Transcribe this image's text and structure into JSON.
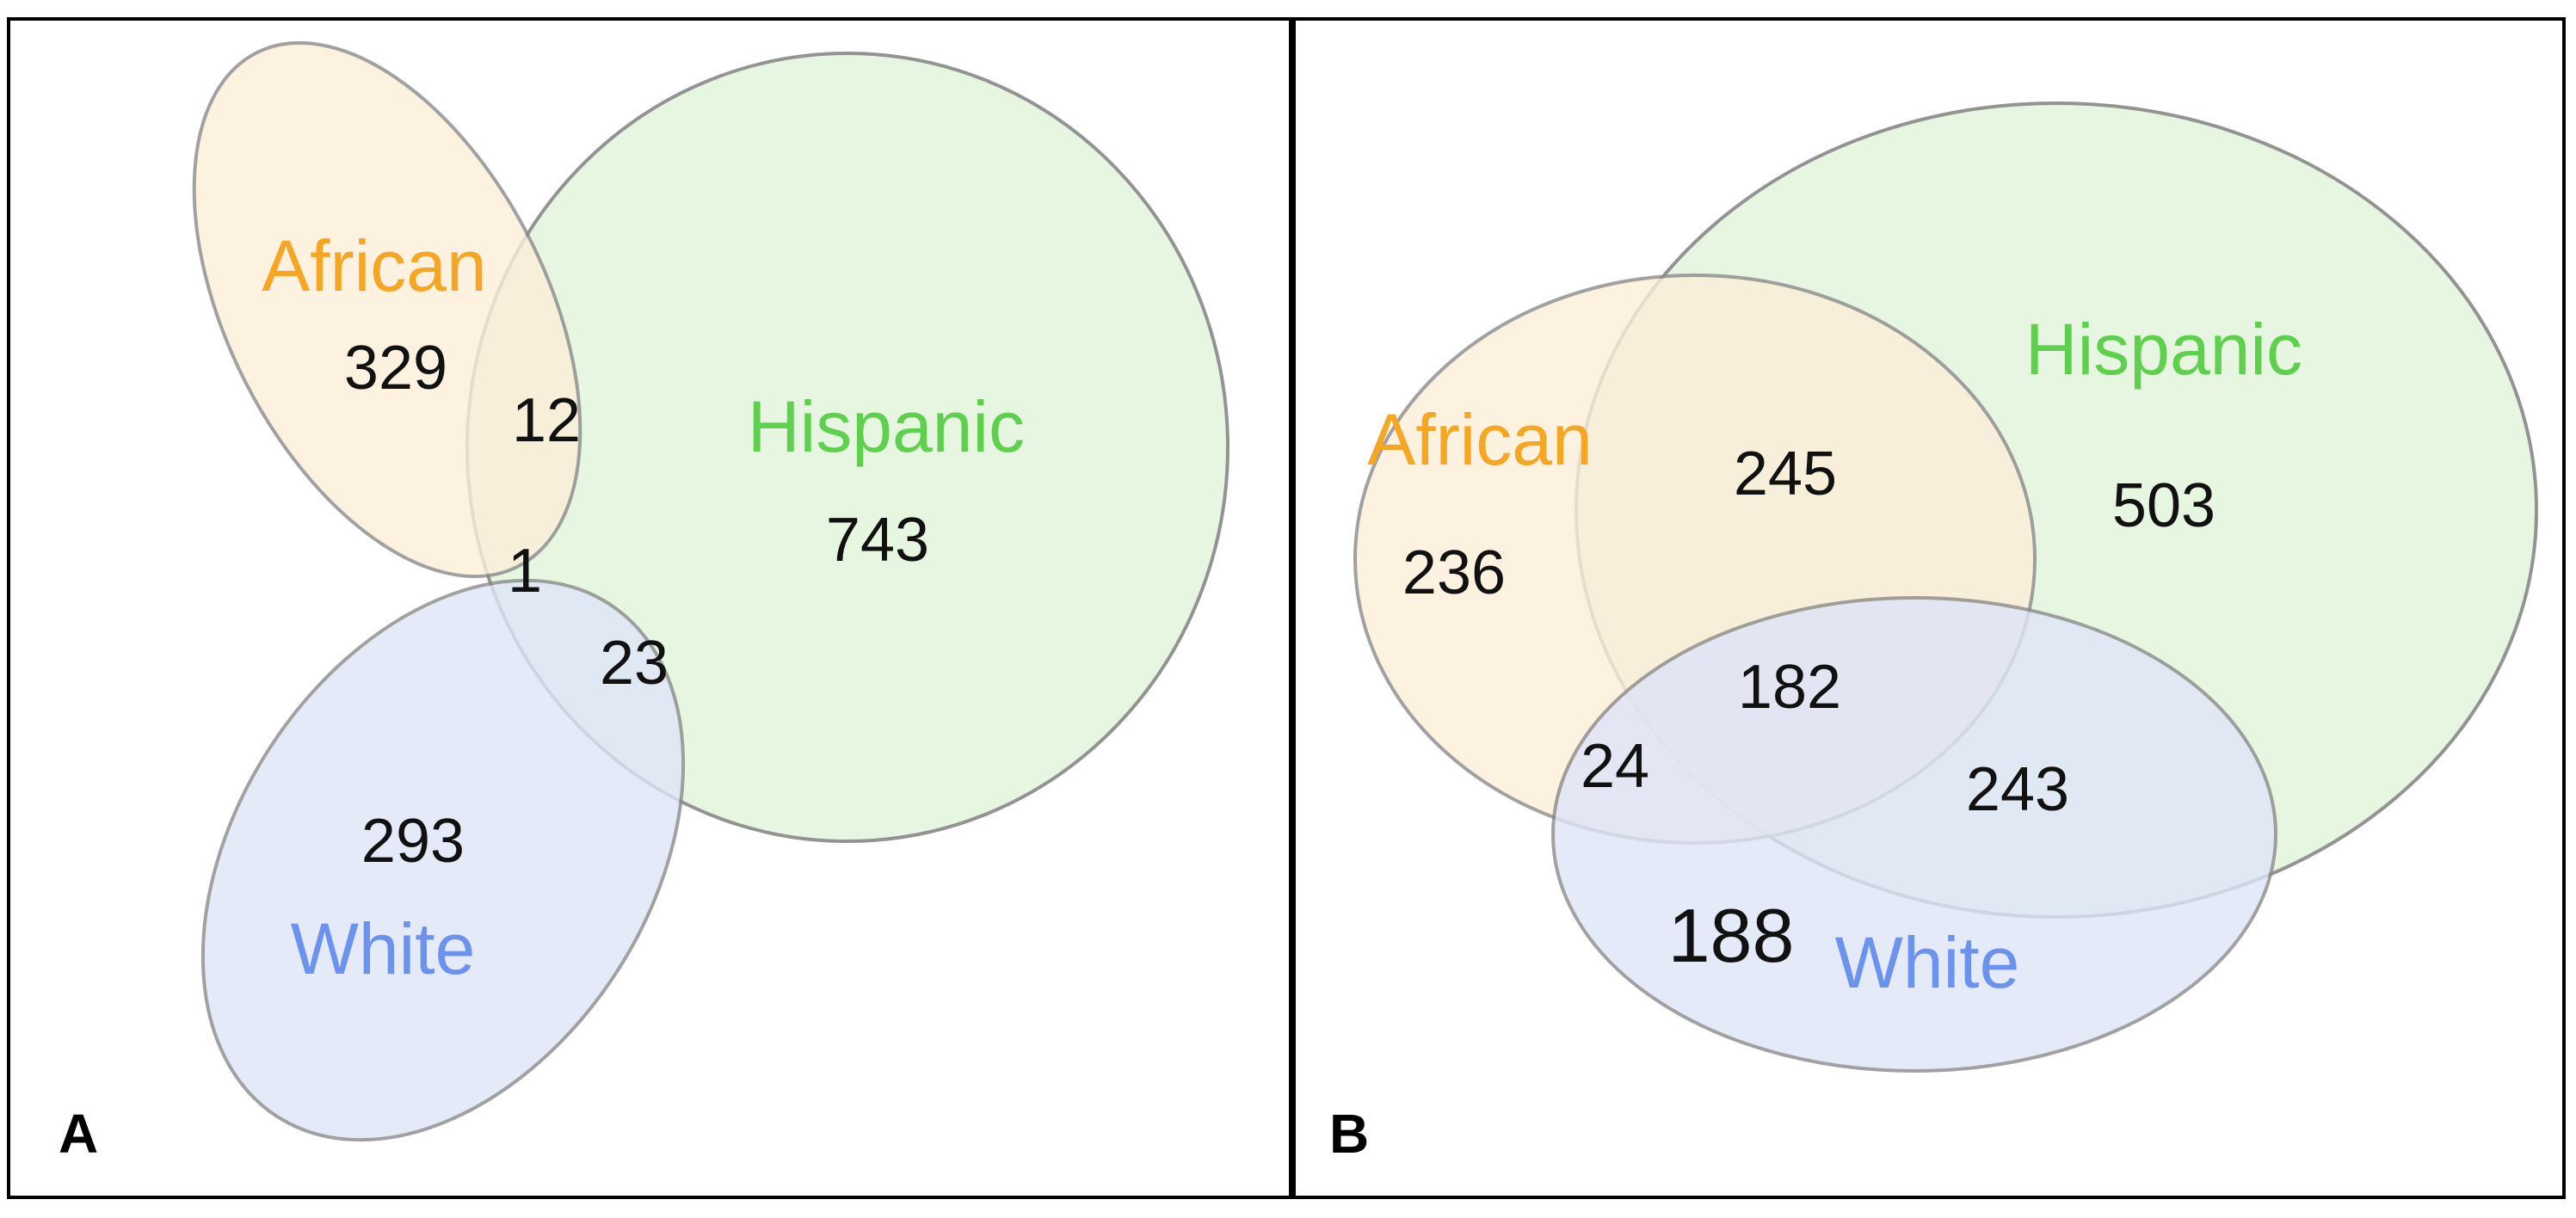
{
  "colors": {
    "african": "#f5a623",
    "hispanic": "#5fcf4e",
    "white": "#6b93ee",
    "african_fill": "#fdeed9",
    "hispanic_fill": "#e4f6de",
    "white_fill": "#dfe5f8",
    "outline": "#8a8a8a",
    "border": "#000000"
  },
  "panels": [
    {
      "letter": "A",
      "labels": {
        "african": "African",
        "hispanic": "Hispanic",
        "white": "White"
      },
      "regions": {
        "african_only": "329",
        "african_hispanic": "12",
        "african_hispanic_white": "1",
        "hispanic_white": "23",
        "hispanic_only": "743",
        "white_only": "293"
      }
    },
    {
      "letter": "B",
      "labels": {
        "african": "African",
        "hispanic": "Hispanic",
        "white": "White"
      },
      "regions": {
        "african_only": "236",
        "african_hispanic": "245",
        "hispanic_only": "503",
        "african_hispanic_white": "182",
        "african_white": "24",
        "hispanic_white": "243",
        "white_only": "188"
      }
    }
  ]
}
